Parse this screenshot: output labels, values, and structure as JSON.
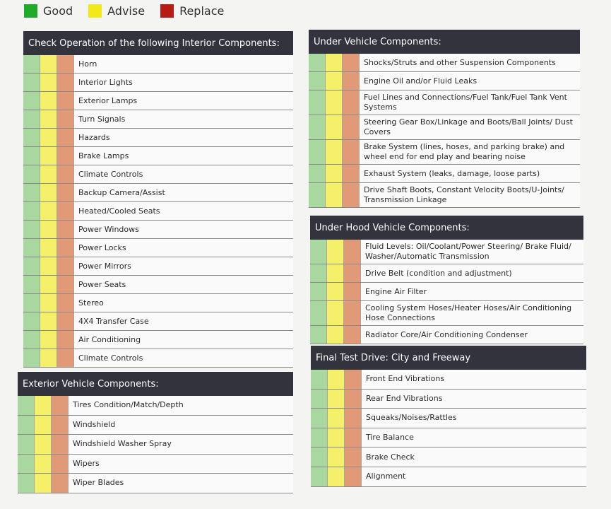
{
  "legend": [
    {
      "label": "Good",
      "color": "#1faa2a"
    },
    {
      "label": "Advise",
      "color": "#f2e81a"
    },
    {
      "label": "Replace",
      "color": "#b81a14"
    }
  ],
  "sections": [
    {
      "title": "Check Operation of the following Interior Components:",
      "items": [
        "Horn",
        "Interior Lights",
        "Exterior Lamps",
        "Turn Signals",
        "Hazards",
        "Brake Lamps",
        "Climate Controls",
        "Backup Camera/Assist",
        "Heated/Cooled Seats",
        "Power Windows",
        "Power Locks",
        "Power Mirrors",
        "Power Seats",
        "Stereo",
        "4X4 Transfer Case",
        "Air Conditioning",
        "Climate Controls"
      ]
    },
    {
      "title": "Exterior Vehicle Components:",
      "items": [
        "Tires Condition/Match/Depth",
        "Windshield",
        "Windshield Washer Spray",
        "Wipers",
        "Wiper Blades"
      ]
    },
    {
      "title": "Under Vehicle Components:",
      "items": [
        "Shocks/Struts and other Suspension Components",
        "Engine Oil and/or Fluid Leaks",
        "Fuel Lines and Connections/Fuel Tank/Fuel Tank Vent Systems",
        "Steering Gear Box/Linkage and Boots/Ball Joints/ Dust Covers",
        "Brake System (lines, hoses, and parking brake) and wheel end for end play and bearing noise",
        "Exhaust System (leaks, damage, loose parts)",
        "Drive Shaft Boots, Constant Velocity Boots/U-Joints/ Transmission Linkage"
      ]
    },
    {
      "title": "Under Hood Vehicle Components:",
      "items": [
        "Fluid Levels: Oil/Coolant/Power Steering/ Brake Fluid/ Washer/Automatic Transmission",
        "Drive Belt (condition and adjustment)",
        "Engine Air Filter",
        "Cooling System Hoses/Heater Hoses/Air Conditioning Hose Connections",
        "Radiator Core/Air Conditioning Condenser"
      ]
    },
    {
      "title": "Final Test Drive: City and Freeway",
      "items": [
        "Front End Vibrations",
        "Rear End Vibrations",
        "Squeaks/Noises/Rattles",
        "Tire Balance",
        "Brake Check",
        "Alignment"
      ]
    }
  ]
}
